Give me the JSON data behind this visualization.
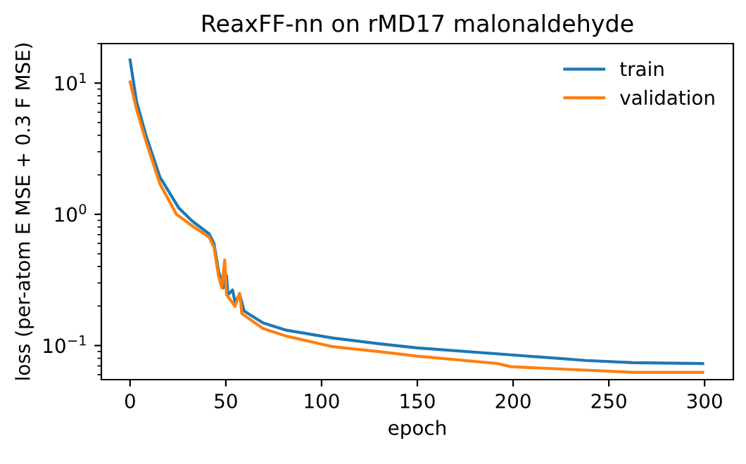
{
  "chart_data": {
    "type": "line",
    "title": "ReaxFF-nn on rMD17 malonaldehyde",
    "xlabel": "epoch",
    "ylabel": "loss (per-atom E MSE + 0.3 F MSE)",
    "log": "y",
    "xlim": [
      -15,
      315
    ],
    "ylim": [
      0.055,
      20
    ],
    "xticks": [
      0,
      50,
      100,
      150,
      200,
      250,
      300
    ],
    "yticks": [
      {
        "value": 0.1,
        "label": "10$^{−1}$"
      },
      {
        "value": 1,
        "label": "10$^{0}$"
      },
      {
        "value": 10,
        "label": "10$^{1}$"
      }
    ],
    "legend": "top right",
    "line_style": "solid",
    "marker": "none",
    "series": [
      {
        "name": "train",
        "color": "#1f77b4",
        "x": [
          0,
          3.4,
          8.3,
          15.6,
          25.4,
          32.8,
          41.3,
          43.8,
          46.2,
          48.7,
          50.4,
          51.1,
          53.5,
          54.8,
          57.2,
          59.6,
          69.4,
          81.6,
          106,
          130.6,
          150,
          199,
          238,
          262.6,
          299
        ],
        "values": [
          15,
          7.2,
          4.0,
          1.92,
          1.12,
          0.88,
          0.71,
          0.6,
          0.37,
          0.275,
          0.34,
          0.244,
          0.265,
          0.215,
          0.245,
          0.183,
          0.149,
          0.131,
          0.114,
          0.103,
          0.096,
          0.085,
          0.077,
          0.074,
          0.073
        ]
      },
      {
        "name": "validation",
        "color": "#ff7f0e",
        "x": [
          0,
          3.4,
          8.3,
          15.6,
          24.2,
          32.8,
          41.3,
          43.8,
          46.2,
          47.9,
          49.4,
          50.4,
          54.8,
          57.2,
          58.4,
          69.4,
          81.6,
          106,
          130,
          150,
          191.7,
          199,
          238,
          262.6,
          299
        ],
        "values": [
          10.2,
          6.3,
          3.6,
          1.7,
          1.0,
          0.81,
          0.67,
          0.56,
          0.34,
          0.275,
          0.45,
          0.244,
          0.199,
          0.25,
          0.175,
          0.135,
          0.118,
          0.098,
          0.09,
          0.083,
          0.073,
          0.069,
          0.065,
          0.0625,
          0.0625
        ]
      }
    ]
  }
}
